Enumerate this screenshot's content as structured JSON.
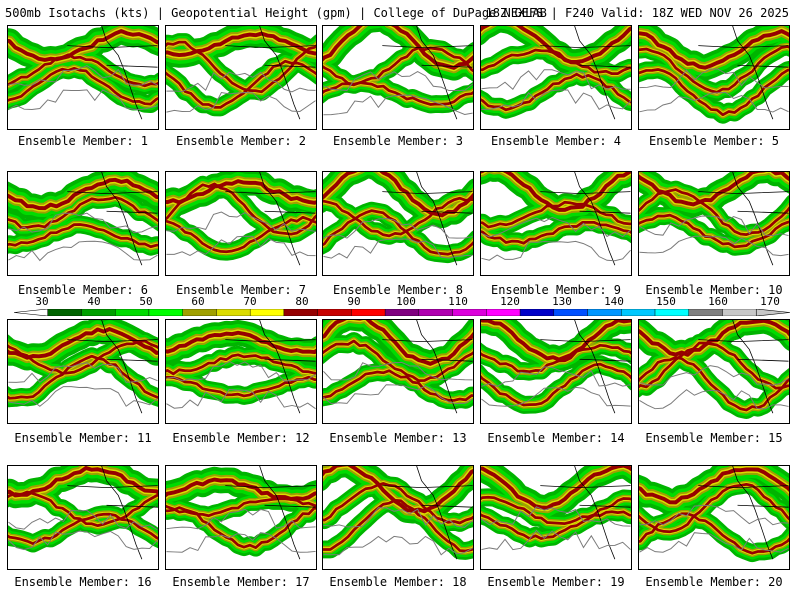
{
  "header": {
    "left": "500mb Isotachs (kts) | Geopotential Height (gpm) | College of DuPage NEXLAB",
    "right": "18Z GEFS | F240 Valid: 18Z WED NOV 26 2025"
  },
  "label_prefix": "Ensemble Member: ",
  "members": [
    {
      "id": 1,
      "label": "Ensemble Member: 1"
    },
    {
      "id": 2,
      "label": "Ensemble Member: 2"
    },
    {
      "id": 3,
      "label": "Ensemble Member: 3"
    },
    {
      "id": 4,
      "label": "Ensemble Member: 4"
    },
    {
      "id": 5,
      "label": "Ensemble Member: 5"
    },
    {
      "id": 6,
      "label": "Ensemble Member: 6"
    },
    {
      "id": 7,
      "label": "Ensemble Member: 7"
    },
    {
      "id": 8,
      "label": "Ensemble Member: 8"
    },
    {
      "id": 9,
      "label": "Ensemble Member: 9"
    },
    {
      "id": 10,
      "label": "Ensemble Member: 10"
    },
    {
      "id": 11,
      "label": "Ensemble Member: 11"
    },
    {
      "id": 12,
      "label": "Ensemble Member: 12"
    },
    {
      "id": 13,
      "label": "Ensemble Member: 13"
    },
    {
      "id": 14,
      "label": "Ensemble Member: 14"
    },
    {
      "id": 15,
      "label": "Ensemble Member: 15"
    },
    {
      "id": 16,
      "label": "Ensemble Member: 16"
    },
    {
      "id": 17,
      "label": "Ensemble Member: 17"
    },
    {
      "id": 18,
      "label": "Ensemble Member: 18"
    },
    {
      "id": 19,
      "label": "Ensemble Member: 19"
    },
    {
      "id": 20,
      "label": "Ensemble Member: 20"
    }
  ],
  "legend": {
    "ticks": [
      "30",
      "40",
      "50",
      "60",
      "70",
      "80",
      "90",
      "100",
      "110",
      "120",
      "130",
      "140",
      "150",
      "160",
      "170"
    ],
    "colors": [
      "#006400",
      "#00a000",
      "#00dc00",
      "#00ff00",
      "#a0a000",
      "#dcdc00",
      "#ffff00",
      "#960000",
      "#c80000",
      "#ff0000",
      "#800080",
      "#b000b0",
      "#dc00dc",
      "#ff00ff",
      "#0000c8",
      "#0050ff",
      "#0096ff",
      "#00c8ff",
      "#00ffff",
      "#808080",
      "#c8c8c8"
    ]
  }
}
